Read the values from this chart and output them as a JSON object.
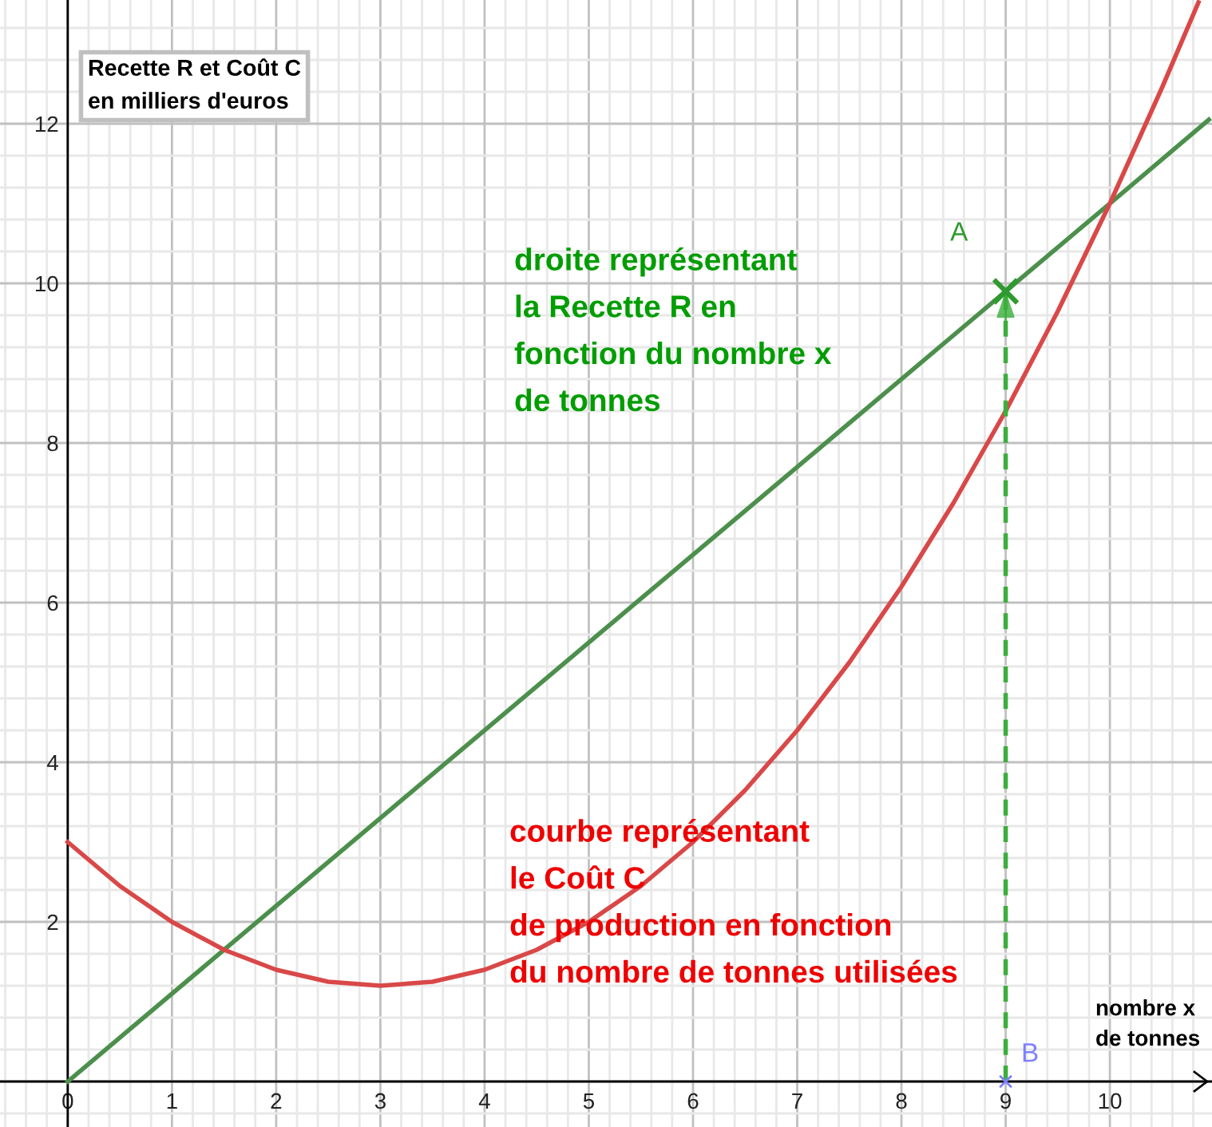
{
  "chart_data": {
    "type": "line",
    "xlabel": "nombre x\nde tonnes",
    "ylabel": "Recette R et Coût C\nen milliers d'euros",
    "xlim": [
      -0.65,
      10.98
    ],
    "ylim": [
      -0.57,
      13.55
    ],
    "xticks": [
      0,
      1,
      2,
      3,
      4,
      5,
      6,
      7,
      8,
      9,
      10
    ],
    "yticks": [
      2,
      4,
      6,
      8,
      10,
      12
    ],
    "grid": true,
    "series": [
      {
        "name": "droite représentant\nla Recette R en\nfonction du nombre x\nde tonnes",
        "color": "#4c8f4c",
        "x": [
          0,
          9,
          10,
          10.95
        ],
        "values": [
          0,
          9.9,
          11,
          12.05
        ]
      },
      {
        "name": "courbe représentant\nle Coût C\nde production en fonction\ndu nombre de tonnes utilisées",
        "color": "#d94848",
        "x": [
          0,
          0.5,
          1,
          1.5,
          2,
          2.5,
          3,
          3.5,
          4,
          4.5,
          5,
          5.5,
          6,
          6.5,
          7,
          7.5,
          8,
          8.5,
          9,
          9.5,
          10,
          10.5,
          10.85
        ],
        "values": [
          3,
          2.45,
          2,
          1.65,
          1.4,
          1.25,
          1.2,
          1.25,
          1.4,
          1.65,
          2,
          2.45,
          3,
          3.65,
          4.4,
          5.25,
          6.2,
          7.25,
          8.4,
          9.65,
          11,
          12.45,
          13.52
        ]
      },
      {
        "color": "#3cae3c",
        "line_style": "dashed",
        "x": [
          9,
          9
        ],
        "values": [
          0,
          9.9
        ]
      },
      {
        "type": "scatter",
        "color": "#2f9a2f",
        "marker": "cross",
        "x": [
          9
        ],
        "values": [
          9.9
        ]
      },
      {
        "type": "scatter",
        "color": "#7f7fff",
        "marker": "cross",
        "x": [
          9
        ],
        "values": [
          0
        ]
      }
    ],
    "annotations": [
      {
        "text": "A",
        "x": 9,
        "y": 9.9
      },
      {
        "text": "B",
        "x": 9,
        "y": 0
      }
    ]
  }
}
